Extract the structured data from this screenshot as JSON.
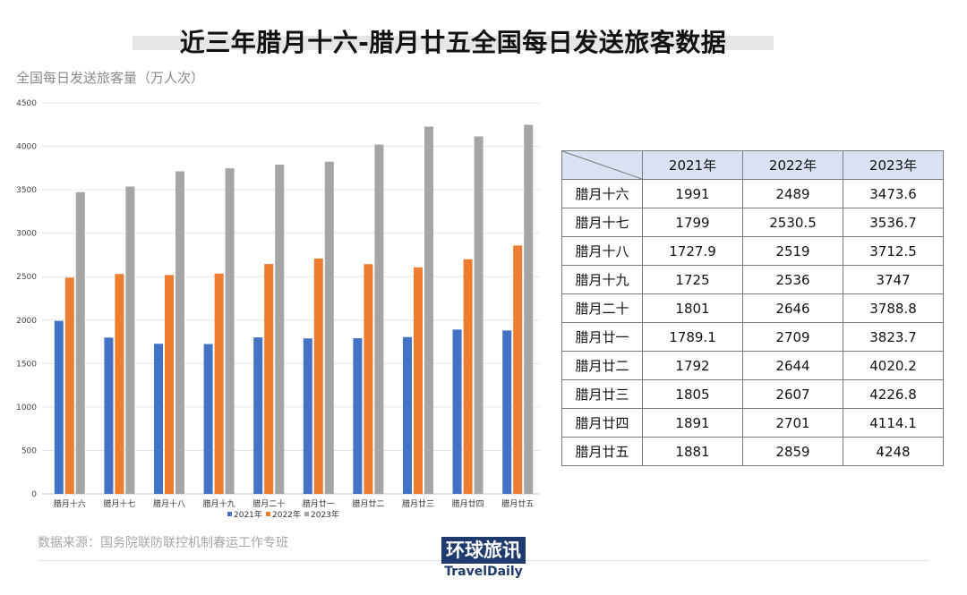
{
  "title": "近三年腊月十六-腊月廿五全国每日发送旅客数据",
  "subtitle": "全国每日发送旅客量（万人次）",
  "source": "数据来源：国务院联防联控机制春运工作专班",
  "logo": {
    "cn": "环球旅讯",
    "en": "TravelDaily"
  },
  "colors": {
    "2021": "#4472c4",
    "2022": "#ed7d31",
    "2023": "#a5a5a5"
  },
  "chart_data": {
    "type": "bar",
    "categories": [
      "腊月十六",
      "腊月十七",
      "腊月十八",
      "腊月十九",
      "腊月二十",
      "腊月廿一",
      "腊月廿二",
      "腊月廿三",
      "腊月廿四",
      "腊月廿五"
    ],
    "series": [
      {
        "name": "2021年",
        "values": [
          1991,
          1799,
          1727.9,
          1725,
          1801,
          1789.1,
          1792,
          1805,
          1891,
          1881
        ]
      },
      {
        "name": "2022年",
        "values": [
          2489,
          2530.5,
          2519,
          2536,
          2646,
          2709,
          2644,
          2607,
          2701,
          2859
        ]
      },
      {
        "name": "2023年",
        "values": [
          3473.6,
          3536.7,
          3712.5,
          3747,
          3788.8,
          3823.7,
          4020.2,
          4226.8,
          4114.1,
          4248
        ]
      }
    ],
    "yticks": [
      "0",
      "500",
      "1000",
      "1500",
      "2000",
      "2500",
      "3000",
      "3500",
      "4000",
      "4500"
    ],
    "ylim": [
      0,
      4500
    ],
    "grid": true,
    "legend_position": "bottom"
  },
  "table": {
    "headers": [
      "2021年",
      "2022年",
      "2023年"
    ],
    "rows": [
      {
        "label": "腊月十六",
        "values": [
          "1991",
          "2489",
          "3473.6"
        ]
      },
      {
        "label": "腊月十七",
        "values": [
          "1799",
          "2530.5",
          "3536.7"
        ]
      },
      {
        "label": "腊月十八",
        "values": [
          "1727.9",
          "2519",
          "3712.5"
        ]
      },
      {
        "label": "腊月十九",
        "values": [
          "1725",
          "2536",
          "3747"
        ]
      },
      {
        "label": "腊月二十",
        "values": [
          "1801",
          "2646",
          "3788.8"
        ]
      },
      {
        "label": "腊月廿一",
        "values": [
          "1789.1",
          "2709",
          "3823.7"
        ]
      },
      {
        "label": "腊月廿二",
        "values": [
          "1792",
          "2644",
          "4020.2"
        ]
      },
      {
        "label": "腊月廿三",
        "values": [
          "1805",
          "2607",
          "4226.8"
        ]
      },
      {
        "label": "腊月廿四",
        "values": [
          "1891",
          "2701",
          "4114.1"
        ]
      },
      {
        "label": "腊月廿五",
        "values": [
          "1881",
          "2859",
          "4248"
        ]
      }
    ]
  }
}
